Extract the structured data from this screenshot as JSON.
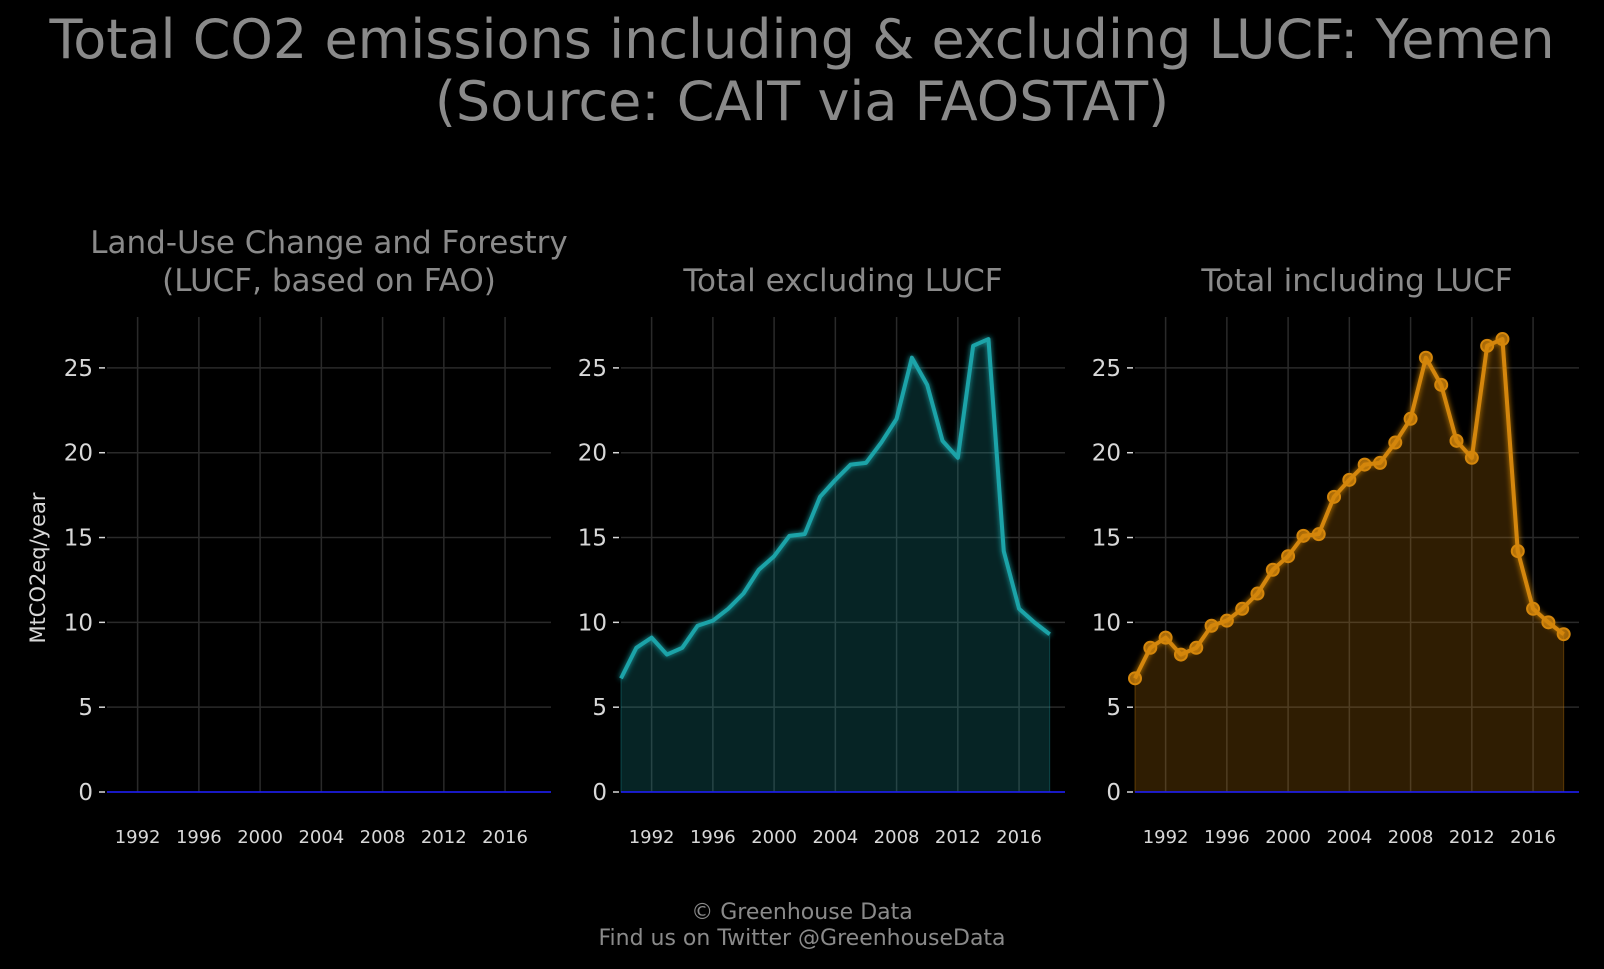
{
  "title": {
    "line1": "Total CO2 emissions including & excluding LUCF: Yemen",
    "line2": "(Source: CAIT via FAOSTAT)"
  },
  "footer": {
    "line1": "© Greenhouse Data",
    "line2": "Find us on Twitter @GreenhouseData"
  },
  "ylabel": "MtCO2eq/year",
  "colors": {
    "background": "#000000",
    "grid": "#2a2a2a",
    "text": "#8a8a8a",
    "tick_text": "#d8d8d8",
    "zero_line": "#1a1aff",
    "lucf": "#1f8a1f",
    "excl": "#1aa3a8",
    "incl": "#d4860b"
  },
  "chart_data": [
    {
      "type": "area",
      "title_lines": [
        "Land-Use Change and Forestry",
        "(LUCF, based on FAO)"
      ],
      "ylim": [
        0,
        28
      ],
      "xlim": [
        1990,
        2019
      ],
      "yticks": [
        0,
        5,
        10,
        15,
        20,
        25
      ],
      "xticks": [
        1992,
        1996,
        2000,
        2004,
        2008,
        2012,
        2016
      ],
      "grid": true,
      "markers": false,
      "color_key": "lucf",
      "x": [
        1990,
        1991,
        1992,
        1993,
        1994,
        1995,
        1996,
        1997,
        1998,
        1999,
        2000,
        2001,
        2002,
        2003,
        2004,
        2005,
        2006,
        2007,
        2008,
        2009,
        2010,
        2011,
        2012,
        2013,
        2014,
        2015,
        2016,
        2017,
        2018
      ],
      "values": [
        0,
        0,
        0,
        0,
        0,
        0,
        0,
        0,
        0,
        0,
        0,
        0,
        0,
        0,
        0,
        0,
        0,
        0,
        0,
        0,
        0,
        0,
        0,
        0,
        0,
        0,
        0,
        0,
        0
      ]
    },
    {
      "type": "area",
      "title_lines": [
        "Total excluding LUCF"
      ],
      "ylim": [
        0,
        28
      ],
      "xlim": [
        1990,
        2019
      ],
      "yticks": [
        0,
        5,
        10,
        15,
        20,
        25
      ],
      "xticks": [
        1992,
        1996,
        2000,
        2004,
        2008,
        2012,
        2016
      ],
      "grid": true,
      "markers": false,
      "color_key": "excl",
      "x": [
        1990,
        1991,
        1992,
        1993,
        1994,
        1995,
        1996,
        1997,
        1998,
        1999,
        2000,
        2001,
        2002,
        2003,
        2004,
        2005,
        2006,
        2007,
        2008,
        2009,
        2010,
        2011,
        2012,
        2013,
        2014,
        2015,
        2016,
        2017,
        2018
      ],
      "values": [
        6.7,
        8.5,
        9.1,
        8.1,
        8.5,
        9.8,
        10.1,
        10.8,
        11.7,
        13.1,
        13.9,
        15.1,
        15.2,
        17.4,
        18.4,
        19.3,
        19.4,
        20.6,
        22.0,
        25.6,
        24.0,
        20.7,
        19.7,
        26.3,
        26.7,
        14.2,
        10.8,
        10.0,
        9.3
      ]
    },
    {
      "type": "area",
      "title_lines": [
        "Total including LUCF"
      ],
      "ylim": [
        0,
        28
      ],
      "xlim": [
        1990,
        2019
      ],
      "yticks": [
        0,
        5,
        10,
        15,
        20,
        25
      ],
      "xticks": [
        1992,
        1996,
        2000,
        2004,
        2008,
        2012,
        2016
      ],
      "grid": true,
      "markers": true,
      "color_key": "incl",
      "x": [
        1990,
        1991,
        1992,
        1993,
        1994,
        1995,
        1996,
        1997,
        1998,
        1999,
        2000,
        2001,
        2002,
        2003,
        2004,
        2005,
        2006,
        2007,
        2008,
        2009,
        2010,
        2011,
        2012,
        2013,
        2014,
        2015,
        2016,
        2017,
        2018
      ],
      "values": [
        6.7,
        8.5,
        9.1,
        8.1,
        8.5,
        9.8,
        10.1,
        10.8,
        11.7,
        13.1,
        13.9,
        15.1,
        15.2,
        17.4,
        18.4,
        19.3,
        19.4,
        20.6,
        22.0,
        25.6,
        24.0,
        20.7,
        19.7,
        26.3,
        26.7,
        14.2,
        10.8,
        10.0,
        9.3
      ]
    }
  ]
}
